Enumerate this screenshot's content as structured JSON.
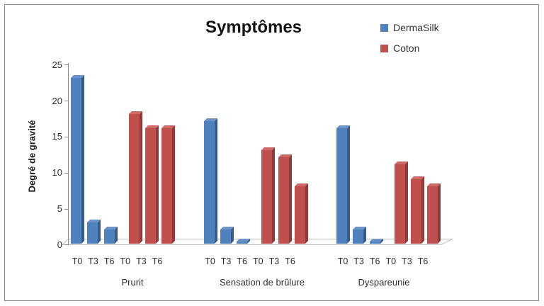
{
  "chart_data": {
    "type": "bar",
    "style": "3d-column",
    "title": "Symptômes",
    "xlabel": "",
    "ylabel": "Degré de gravité",
    "ylim": [
      0,
      25
    ],
    "yticks": [
      25,
      20,
      15,
      10,
      5,
      0
    ],
    "grid": false,
    "legend_position": "top-right",
    "categories": [
      "Prurit",
      "Sensation de brûlure",
      "Dyspareunie"
    ],
    "time_points": [
      "T0",
      "T3",
      "T6"
    ],
    "series": [
      {
        "name": "DermaSilk",
        "color": "#4F81BD",
        "color_top": "#6C94C8",
        "color_side": "#365C8D",
        "values": [
          [
            23,
            3,
            2
          ],
          [
            17,
            2,
            0.3
          ],
          [
            16,
            2,
            0.3
          ]
        ]
      },
      {
        "name": "Coton",
        "color": "#C0504D",
        "color_top": "#CB6A66",
        "color_side": "#8E3B39",
        "values": [
          [
            18,
            16,
            16
          ],
          [
            13,
            12,
            8
          ],
          [
            11,
            9,
            8
          ]
        ]
      }
    ],
    "axis_color": "#8A8A8A",
    "floor_edge_color": "#BFBFBF"
  }
}
